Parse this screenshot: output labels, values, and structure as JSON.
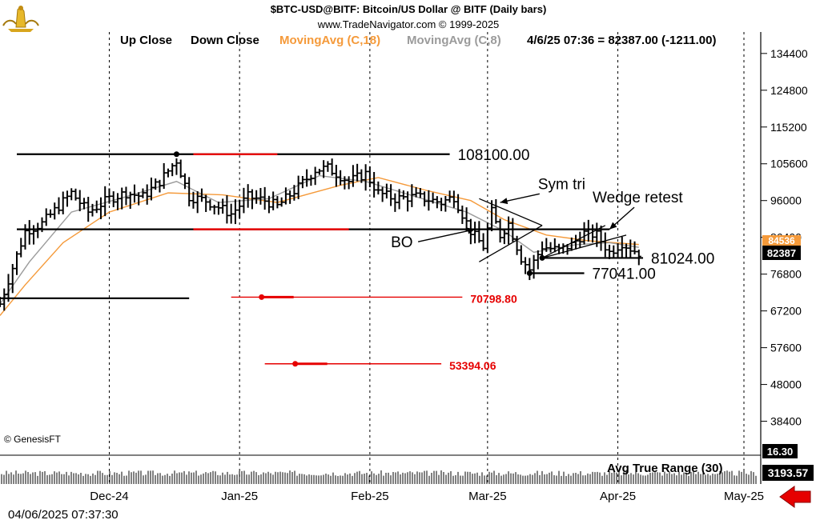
{
  "header": {
    "line1": "$BTC-USD@BITF:  Bitcoin/US Dollar @ BITF  (Daily bars)",
    "line2": "www.TradeNavigator.com © 1999-2025",
    "legend_up": "Up Close",
    "legend_down": "Down Close",
    "ma18": "MovingAvg (C,18)",
    "ma8": "MovingAvg (C,8)",
    "quote": "4/6/25 07:36 = 82387.00 (-1211.00)"
  },
  "footer": {
    "copyright": "© GenesisFT",
    "timestamp": "04/06/2025 07:37:30",
    "atr_label": "Avg True Range (30)"
  },
  "badges": {
    "ma_left": "84536",
    "price": "82387",
    "small_value": "16.30",
    "atr_value": "3193.57"
  },
  "colors": {
    "ma18": "#f59a3a",
    "ma8": "#9b9b9b",
    "red": "#e60000",
    "arrow": "#e60000",
    "bars": "#000000"
  },
  "icons": [
    "bull-bear-logo-icon",
    "red-arrow-icon"
  ],
  "chart_data": {
    "type": "ohlc",
    "ylim": [
      31000,
      140000
    ],
    "y_ticks": [
      134400,
      124800,
      115200,
      105600,
      96000,
      86400,
      76800,
      67200,
      57600,
      48000,
      38400
    ],
    "y_tick_labels": [
      "134400",
      "124800",
      "115200",
      "105600",
      "96000",
      "86400",
      "76800",
      "67200",
      "57600",
      "48000",
      "38400"
    ],
    "x_labels": [
      "Dec-24",
      "Jan-25",
      "Feb-25",
      "Mar-25",
      "Apr-25",
      "May-25"
    ],
    "x_label_dates": [
      "2024-12-01",
      "2025-01-01",
      "2025-02-01",
      "2025-03-01",
      "2025-04-01",
      "2025-05-01"
    ],
    "date_range": [
      "2024-11-05",
      "2025-05-05"
    ],
    "close_path": [
      [
        "2024-11-05",
        69000
      ],
      [
        "2024-11-11",
        88000
      ],
      [
        "2024-11-15",
        90000
      ],
      [
        "2024-11-22",
        98000
      ],
      [
        "2024-11-26",
        93000
      ],
      [
        "2024-12-01",
        96500
      ],
      [
        "2024-12-05",
        98000
      ],
      [
        "2024-12-09",
        97000
      ],
      [
        "2024-12-13",
        101000
      ],
      [
        "2024-12-17",
        106500
      ],
      [
        "2024-12-20",
        97000
      ],
      [
        "2024-12-24",
        96000
      ],
      [
        "2024-12-30",
        92500
      ],
      [
        "2025-01-03",
        97000
      ],
      [
        "2025-01-07",
        96000
      ],
      [
        "2025-01-10",
        94500
      ],
      [
        "2025-01-15",
        99500
      ],
      [
        "2025-01-19",
        104000
      ],
      [
        "2025-01-22",
        104500
      ],
      [
        "2025-01-27",
        101000
      ],
      [
        "2025-01-31",
        103000
      ],
      [
        "2025-02-03",
        98000
      ],
      [
        "2025-02-07",
        96500
      ],
      [
        "2025-02-12",
        97000
      ],
      [
        "2025-02-18",
        95500
      ],
      [
        "2025-02-21",
        97000
      ],
      [
        "2025-02-25",
        88000
      ],
      [
        "2025-02-28",
        84000
      ],
      [
        "2025-03-02",
        93000
      ],
      [
        "2025-03-04",
        87000
      ],
      [
        "2025-03-06",
        90000
      ],
      [
        "2025-03-09",
        81000
      ],
      [
        "2025-03-11",
        78000
      ],
      [
        "2025-03-14",
        84000
      ],
      [
        "2025-03-18",
        83000
      ],
      [
        "2025-03-21",
        84500
      ],
      [
        "2025-03-24",
        87500
      ],
      [
        "2025-03-27",
        87000
      ],
      [
        "2025-03-30",
        82500
      ],
      [
        "2025-04-02",
        85000
      ],
      [
        "2025-04-04",
        83500
      ],
      [
        "2025-04-06",
        82387
      ]
    ],
    "moving_averages": [
      {
        "name": "MovingAvg (C,18)",
        "color": "#f59a3a",
        "points": [
          [
            "2024-11-05",
            66000
          ],
          [
            "2024-11-11",
            74000
          ],
          [
            "2024-11-20",
            85000
          ],
          [
            "2024-12-01",
            93000
          ],
          [
            "2024-12-15",
            98000
          ],
          [
            "2024-12-28",
            97500
          ],
          [
            "2025-01-10",
            95500
          ],
          [
            "2025-01-25",
            100000
          ],
          [
            "2025-02-03",
            102000
          ],
          [
            "2025-02-15",
            98500
          ],
          [
            "2025-02-25",
            96000
          ],
          [
            "2025-03-05",
            91000
          ],
          [
            "2025-03-15",
            87000
          ],
          [
            "2025-03-25",
            85500
          ],
          [
            "2025-04-06",
            84536
          ]
        ]
      },
      {
        "name": "MovingAvg (C,8)",
        "color": "#9b9b9b",
        "points": [
          [
            "2024-11-05",
            69000
          ],
          [
            "2024-11-12",
            80000
          ],
          [
            "2024-11-22",
            93000
          ],
          [
            "2024-12-05",
            97000
          ],
          [
            "2024-12-17",
            101000
          ],
          [
            "2024-12-27",
            95500
          ],
          [
            "2025-01-08",
            96500
          ],
          [
            "2025-01-20",
            102500
          ],
          [
            "2025-01-31",
            101000
          ],
          [
            "2025-02-12",
            97000
          ],
          [
            "2025-02-24",
            93000
          ],
          [
            "2025-03-05",
            88000
          ],
          [
            "2025-03-12",
            82500
          ],
          [
            "2025-03-22",
            84500
          ],
          [
            "2025-03-30",
            85000
          ],
          [
            "2025-04-06",
            83800
          ]
        ]
      }
    ],
    "horizontal_levels": [
      {
        "value": 108100,
        "start": "2024-11-09",
        "end": "2025-02-20",
        "label": "108100.00",
        "color": "#000000"
      },
      {
        "value": 88500,
        "start": "2024-11-09",
        "end": "2025-03-30",
        "label": "",
        "color": "#000000"
      },
      {
        "value": 70500,
        "start": "2024-11-05",
        "end": "2024-12-20",
        "label": "",
        "color": "#000000"
      },
      {
        "value": 81024,
        "start": "2025-03-14",
        "end": "2025-04-07",
        "label": "81024.00",
        "color": "#000000"
      },
      {
        "value": 77041,
        "start": "2025-03-11",
        "end": "2025-03-24",
        "label": "77041.00",
        "color": "#000000"
      },
      {
        "value": 70798.8,
        "start": "2024-12-30",
        "end": "2025-02-23",
        "label": "70798.80",
        "color": "#e60000"
      },
      {
        "value": 53394.06,
        "start": "2025-01-07",
        "end": "2025-02-18",
        "label": "53394.06",
        "color": "#e60000"
      }
    ],
    "annotations": [
      {
        "text": "BO",
        "date": "2025-02-06",
        "value": 83800
      },
      {
        "text": "Sym tri",
        "date": "2025-03-13",
        "value": 99000
      },
      {
        "text": "Wedge retest",
        "date": "2025-03-26",
        "value": 95500
      }
    ],
    "atr": {
      "name": "Avg True Range (30)",
      "last": 3193.57
    },
    "xlabel": "",
    "ylabel": ""
  }
}
